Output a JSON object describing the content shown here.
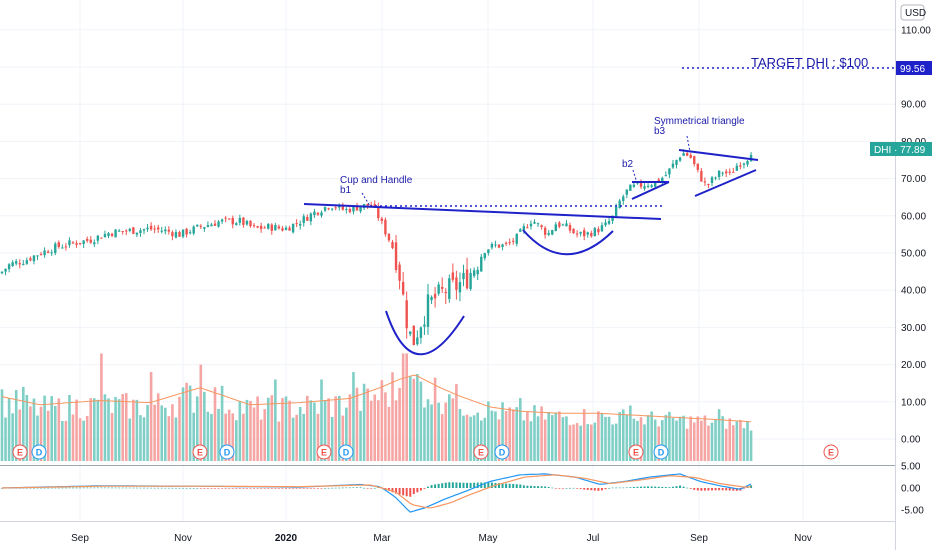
{
  "chart_data": {
    "type": "candlestick",
    "symbol": "DHI",
    "currency": "USD",
    "last_price": 77.89,
    "last_price_label": "DHI · 77.89",
    "target_price": 99.56,
    "target_label": "TARGET DHI : $100",
    "x_ticks": [
      "Sep",
      "Nov",
      "2020",
      "Mar",
      "May",
      "Jul",
      "Sep",
      "Nov"
    ],
    "price_ticks": [
      "110.00",
      "100.00",
      "90.00",
      "80.00",
      "70.00",
      "60.00",
      "50.00",
      "40.00",
      "30.00",
      "20.00",
      "10.00",
      "0.00"
    ],
    "osc_ticks": [
      "5.00",
      "0.00",
      "-5.00"
    ],
    "price_range": [
      0,
      115
    ],
    "osc_range": [
      -7,
      6
    ],
    "annotations": [
      {
        "id": "cup",
        "text1": "Cup and Handle",
        "text2": "b1"
      },
      {
        "id": "b2",
        "text1": "b2",
        "text2": ""
      },
      {
        "id": "tri",
        "text1": "Symmetrical triangle",
        "text2": "b3"
      }
    ],
    "events": [
      "E",
      "D",
      "E",
      "D",
      "E",
      "D",
      "E",
      "D",
      "E",
      "D",
      "E"
    ],
    "price_anchors": [
      [
        0,
        44.5
      ],
      [
        10,
        47
      ],
      [
        25,
        48
      ],
      [
        40,
        50
      ],
      [
        55,
        51.5
      ],
      [
        70,
        52.5
      ],
      [
        90,
        53.5
      ],
      [
        110,
        55.5
      ],
      [
        130,
        56
      ],
      [
        150,
        56.5
      ],
      [
        165,
        56
      ],
      [
        180,
        55
      ],
      [
        200,
        57
      ],
      [
        220,
        58.5
      ],
      [
        240,
        58.5
      ],
      [
        255,
        56.5
      ],
      [
        270,
        57
      ],
      [
        285,
        56.5
      ],
      [
        300,
        58.5
      ],
      [
        315,
        61
      ],
      [
        330,
        63
      ],
      [
        345,
        61.5
      ],
      [
        360,
        62.5
      ],
      [
        372,
        63
      ],
      [
        378,
        60
      ],
      [
        385,
        56
      ],
      [
        392,
        52
      ],
      [
        398,
        47
      ],
      [
        402,
        40
      ],
      [
        406,
        33
      ],
      [
        410,
        28
      ],
      [
        414,
        26.5
      ],
      [
        420,
        31
      ],
      [
        428,
        36
      ],
      [
        436,
        38
      ],
      [
        446,
        40
      ],
      [
        456,
        41
      ],
      [
        466,
        43
      ],
      [
        476,
        47
      ],
      [
        485,
        51
      ],
      [
        495,
        52
      ],
      [
        505,
        52
      ],
      [
        515,
        53.5
      ],
      [
        525,
        57
      ],
      [
        532,
        59
      ],
      [
        540,
        57
      ],
      [
        548,
        55
      ],
      [
        556,
        58
      ],
      [
        566,
        57
      ],
      [
        576,
        55
      ],
      [
        586,
        55
      ],
      [
        596,
        56
      ],
      [
        606,
        57.5
      ],
      [
        614,
        60
      ],
      [
        620,
        64
      ],
      [
        628,
        67
      ],
      [
        636,
        68
      ],
      [
        646,
        68.5
      ],
      [
        656,
        69
      ],
      [
        666,
        71
      ],
      [
        674,
        74
      ],
      [
        682,
        77
      ],
      [
        690,
        76
      ],
      [
        698,
        71.5
      ],
      [
        706,
        68
      ],
      [
        714,
        70
      ],
      [
        722,
        72
      ],
      [
        730,
        71
      ],
      [
        738,
        74
      ],
      [
        746,
        75
      ],
      [
        752,
        77.9
      ]
    ],
    "volume_anchors": [
      [
        0,
        10
      ],
      [
        40,
        8
      ],
      [
        100,
        9
      ],
      [
        150,
        8.5
      ],
      [
        200,
        12
      ],
      [
        250,
        8
      ],
      [
        300,
        8.5
      ],
      [
        350,
        9.5
      ],
      [
        380,
        12
      ],
      [
        400,
        14
      ],
      [
        415,
        15
      ],
      [
        440,
        12
      ],
      [
        460,
        10
      ],
      [
        490,
        7.5
      ],
      [
        520,
        6.5
      ],
      [
        560,
        6
      ],
      [
        600,
        6
      ],
      [
        640,
        5.5
      ],
      [
        680,
        5
      ],
      [
        720,
        4.5
      ],
      [
        752,
        4
      ]
    ],
    "volume_spikes": [
      [
        22,
        14
      ],
      [
        100,
        23
      ],
      [
        150,
        18
      ],
      [
        202,
        20
      ],
      [
        275,
        16
      ],
      [
        320,
        16
      ],
      [
        355,
        18
      ],
      [
        405,
        23
      ],
      [
        410,
        17
      ],
      [
        450,
        12
      ],
      [
        520,
        11
      ],
      [
        630,
        9
      ],
      [
        720,
        8
      ]
    ],
    "macd_anchors": [
      [
        0,
        0
      ],
      [
        100,
        0.5
      ],
      [
        200,
        0.4
      ],
      [
        300,
        0.2
      ],
      [
        360,
        0.8
      ],
      [
        380,
        0.3
      ],
      [
        395,
        -2
      ],
      [
        410,
        -5.5
      ],
      [
        425,
        -4.5
      ],
      [
        445,
        -2.5
      ],
      [
        465,
        -0.8
      ],
      [
        490,
        1.5
      ],
      [
        520,
        3
      ],
      [
        545,
        3.2
      ],
      [
        575,
        2.5
      ],
      [
        600,
        0.8
      ],
      [
        625,
        1.5
      ],
      [
        650,
        2.5
      ],
      [
        680,
        3.2
      ],
      [
        700,
        1.5
      ],
      [
        720,
        0.5
      ],
      [
        740,
        -0.3
      ],
      [
        752,
        1
      ]
    ],
    "signal_anchors": [
      [
        0,
        0
      ],
      [
        100,
        0.4
      ],
      [
        200,
        0.4
      ],
      [
        300,
        0.3
      ],
      [
        370,
        0.7
      ],
      [
        395,
        -0.8
      ],
      [
        412,
        -3.8
      ],
      [
        430,
        -4.6
      ],
      [
        450,
        -3.4
      ],
      [
        470,
        -1.5
      ],
      [
        495,
        0.6
      ],
      [
        525,
        2.5
      ],
      [
        555,
        3
      ],
      [
        585,
        2.2
      ],
      [
        610,
        1
      ],
      [
        640,
        1.8
      ],
      [
        670,
        2.8
      ],
      [
        695,
        2.4
      ],
      [
        720,
        1
      ],
      [
        745,
        0.2
      ],
      [
        752,
        0.3
      ]
    ]
  }
}
